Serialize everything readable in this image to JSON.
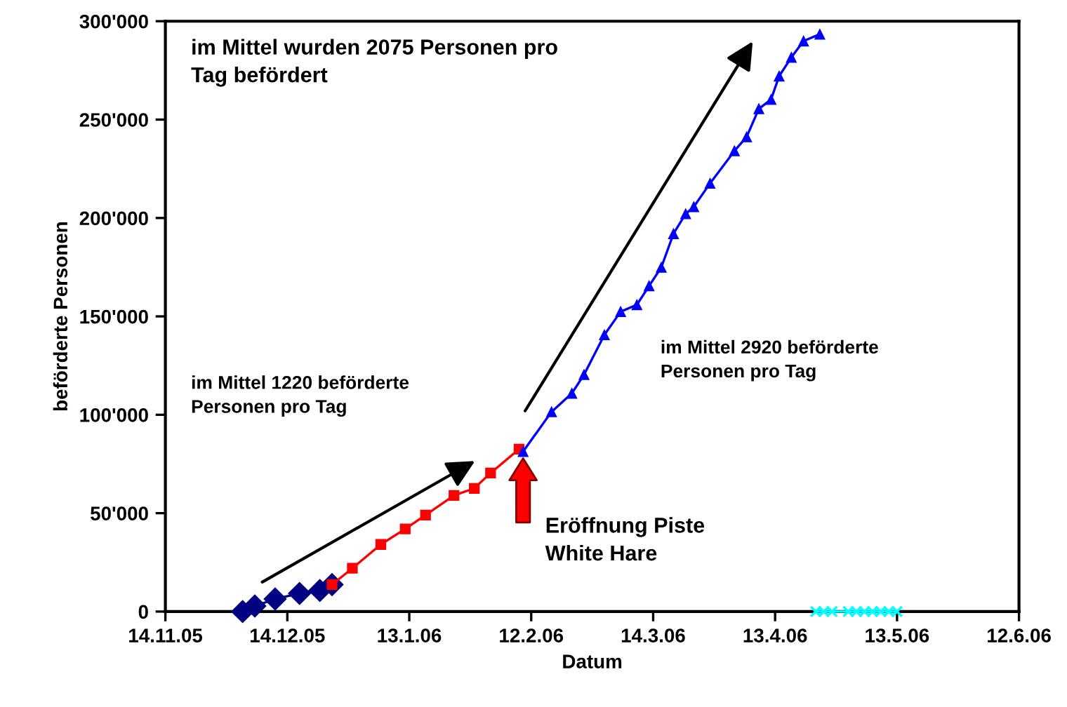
{
  "chart_data": {
    "type": "line",
    "xlabel": "Datum",
    "ylabel": "beförderte Personen",
    "xlim": [
      "2005-11-14",
      "2006-06-12"
    ],
    "ylim": [
      0,
      300000
    ],
    "xticks": [
      {
        "value": "2005-11-14",
        "label": "14.11.05"
      },
      {
        "value": "2005-12-14",
        "label": "14.12.05"
      },
      {
        "value": "2006-01-13",
        "label": "13.1.06"
      },
      {
        "value": "2006-02-12",
        "label": "12.2.06"
      },
      {
        "value": "2006-03-14",
        "label": "14.3.06"
      },
      {
        "value": "2006-04-13",
        "label": "13.4.06"
      },
      {
        "value": "2006-05-13",
        "label": "13.5.06"
      },
      {
        "value": "2006-06-12",
        "label": "12.6.06"
      }
    ],
    "yticks": [
      0,
      {
        "value": 50000,
        "label": "50'000"
      },
      {
        "value": 100000,
        "label": "100'000"
      },
      {
        "value": 150000,
        "label": "150'000"
      },
      {
        "value": 200000,
        "label": "200'000"
      },
      {
        "value": 250000,
        "label": "250'000"
      },
      {
        "value": 300000,
        "label": "300'000"
      }
    ],
    "grid": false,
    "legend": false,
    "series": [
      {
        "color": "#000080",
        "marker": "diamond",
        "x": [
          "2005-12-03",
          "2005-12-06",
          "2005-12-11",
          "2005-12-17",
          "2005-12-22",
          "2005-12-25"
        ],
        "values": [
          0,
          2800,
          6400,
          9200,
          10700,
          13700
        ]
      },
      {
        "color": "#ff0000",
        "marker": "square",
        "x": [
          "2005-12-25",
          "2005-12-30",
          "2006-01-06",
          "2006-01-12",
          "2006-01-17",
          "2006-01-24",
          "2006-01-29",
          "2006-02-02",
          "2006-02-09"
        ],
        "values": [
          13700,
          22000,
          34100,
          42000,
          49000,
          59000,
          62600,
          70400,
          82500
        ]
      },
      {
        "color": "#0000ff",
        "marker": "triangle",
        "x": [
          "2006-02-10",
          "2006-02-17",
          "2006-02-22",
          "2006-02-25",
          "2006-03-02",
          "2006-03-06",
          "2006-03-10",
          "2006-03-13",
          "2006-03-16",
          "2006-03-19",
          "2006-03-22",
          "2006-03-24",
          "2006-03-28",
          "2006-04-03",
          "2006-04-06",
          "2006-04-09",
          "2006-04-12",
          "2006-04-14",
          "2006-04-17",
          "2006-04-20",
          "2006-04-24"
        ],
        "values": [
          81300,
          101500,
          110900,
          120400,
          140600,
          152400,
          155900,
          165500,
          174900,
          192000,
          202100,
          205700,
          217600,
          234100,
          241200,
          255500,
          260200,
          272100,
          281600,
          289900,
          293400
        ]
      },
      {
        "color": "#00ffff",
        "marker": "cross",
        "x": [
          "2006-04-23",
          "2006-04-25",
          "2006-04-27",
          "2006-05-01",
          "2006-05-03",
          "2006-05-05",
          "2006-05-07",
          "2006-05-09",
          "2006-05-11",
          "2006-05-13"
        ],
        "values": [
          0,
          0,
          0,
          0,
          0,
          0,
          0,
          0,
          0,
          0
        ]
      }
    ],
    "annotations": [
      "im Mittel wurden 2075 Personen pro Tag befördert",
      "im Mittel 1220 beförderte Personen pro Tag",
      "im Mittel 2920 beförderte Personen pro Tag",
      "Eröffnung Piste White Hare"
    ]
  }
}
